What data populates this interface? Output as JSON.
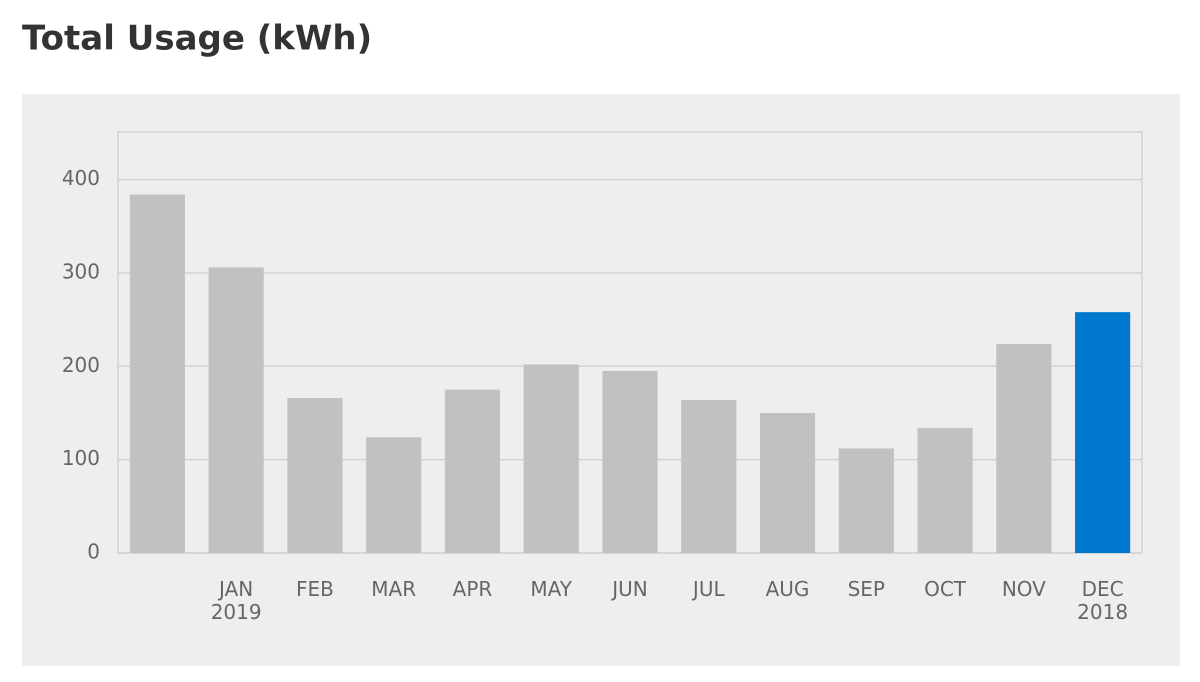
{
  "chart_data": {
    "type": "bar",
    "title": "Total Usage (kWh)",
    "categories": [
      null,
      [
        "JAN",
        "2019"
      ],
      [
        "FEB"
      ],
      [
        "MAR"
      ],
      [
        "APR"
      ],
      [
        "MAY"
      ],
      [
        "JUN"
      ],
      [
        "JUL"
      ],
      [
        "AUG"
      ],
      [
        "SEP"
      ],
      [
        "OCT"
      ],
      [
        "NOV"
      ],
      [
        "DEC",
        "2018"
      ]
    ],
    "values": [
      384,
      306,
      166,
      124,
      175,
      202,
      195,
      164,
      150,
      112,
      134,
      224,
      258
    ],
    "colors": [
      "#c1c1c1",
      "#c1c1c1",
      "#c1c1c1",
      "#c1c1c1",
      "#c1c1c1",
      "#c1c1c1",
      "#c1c1c1",
      "#c1c1c1",
      "#c1c1c1",
      "#c1c1c1",
      "#c1c1c1",
      "#c1c1c1",
      "#0078d0"
    ],
    "ylim": [
      0,
      451
    ],
    "yticks": [
      0,
      100,
      200,
      300,
      400
    ],
    "grid": true
  }
}
